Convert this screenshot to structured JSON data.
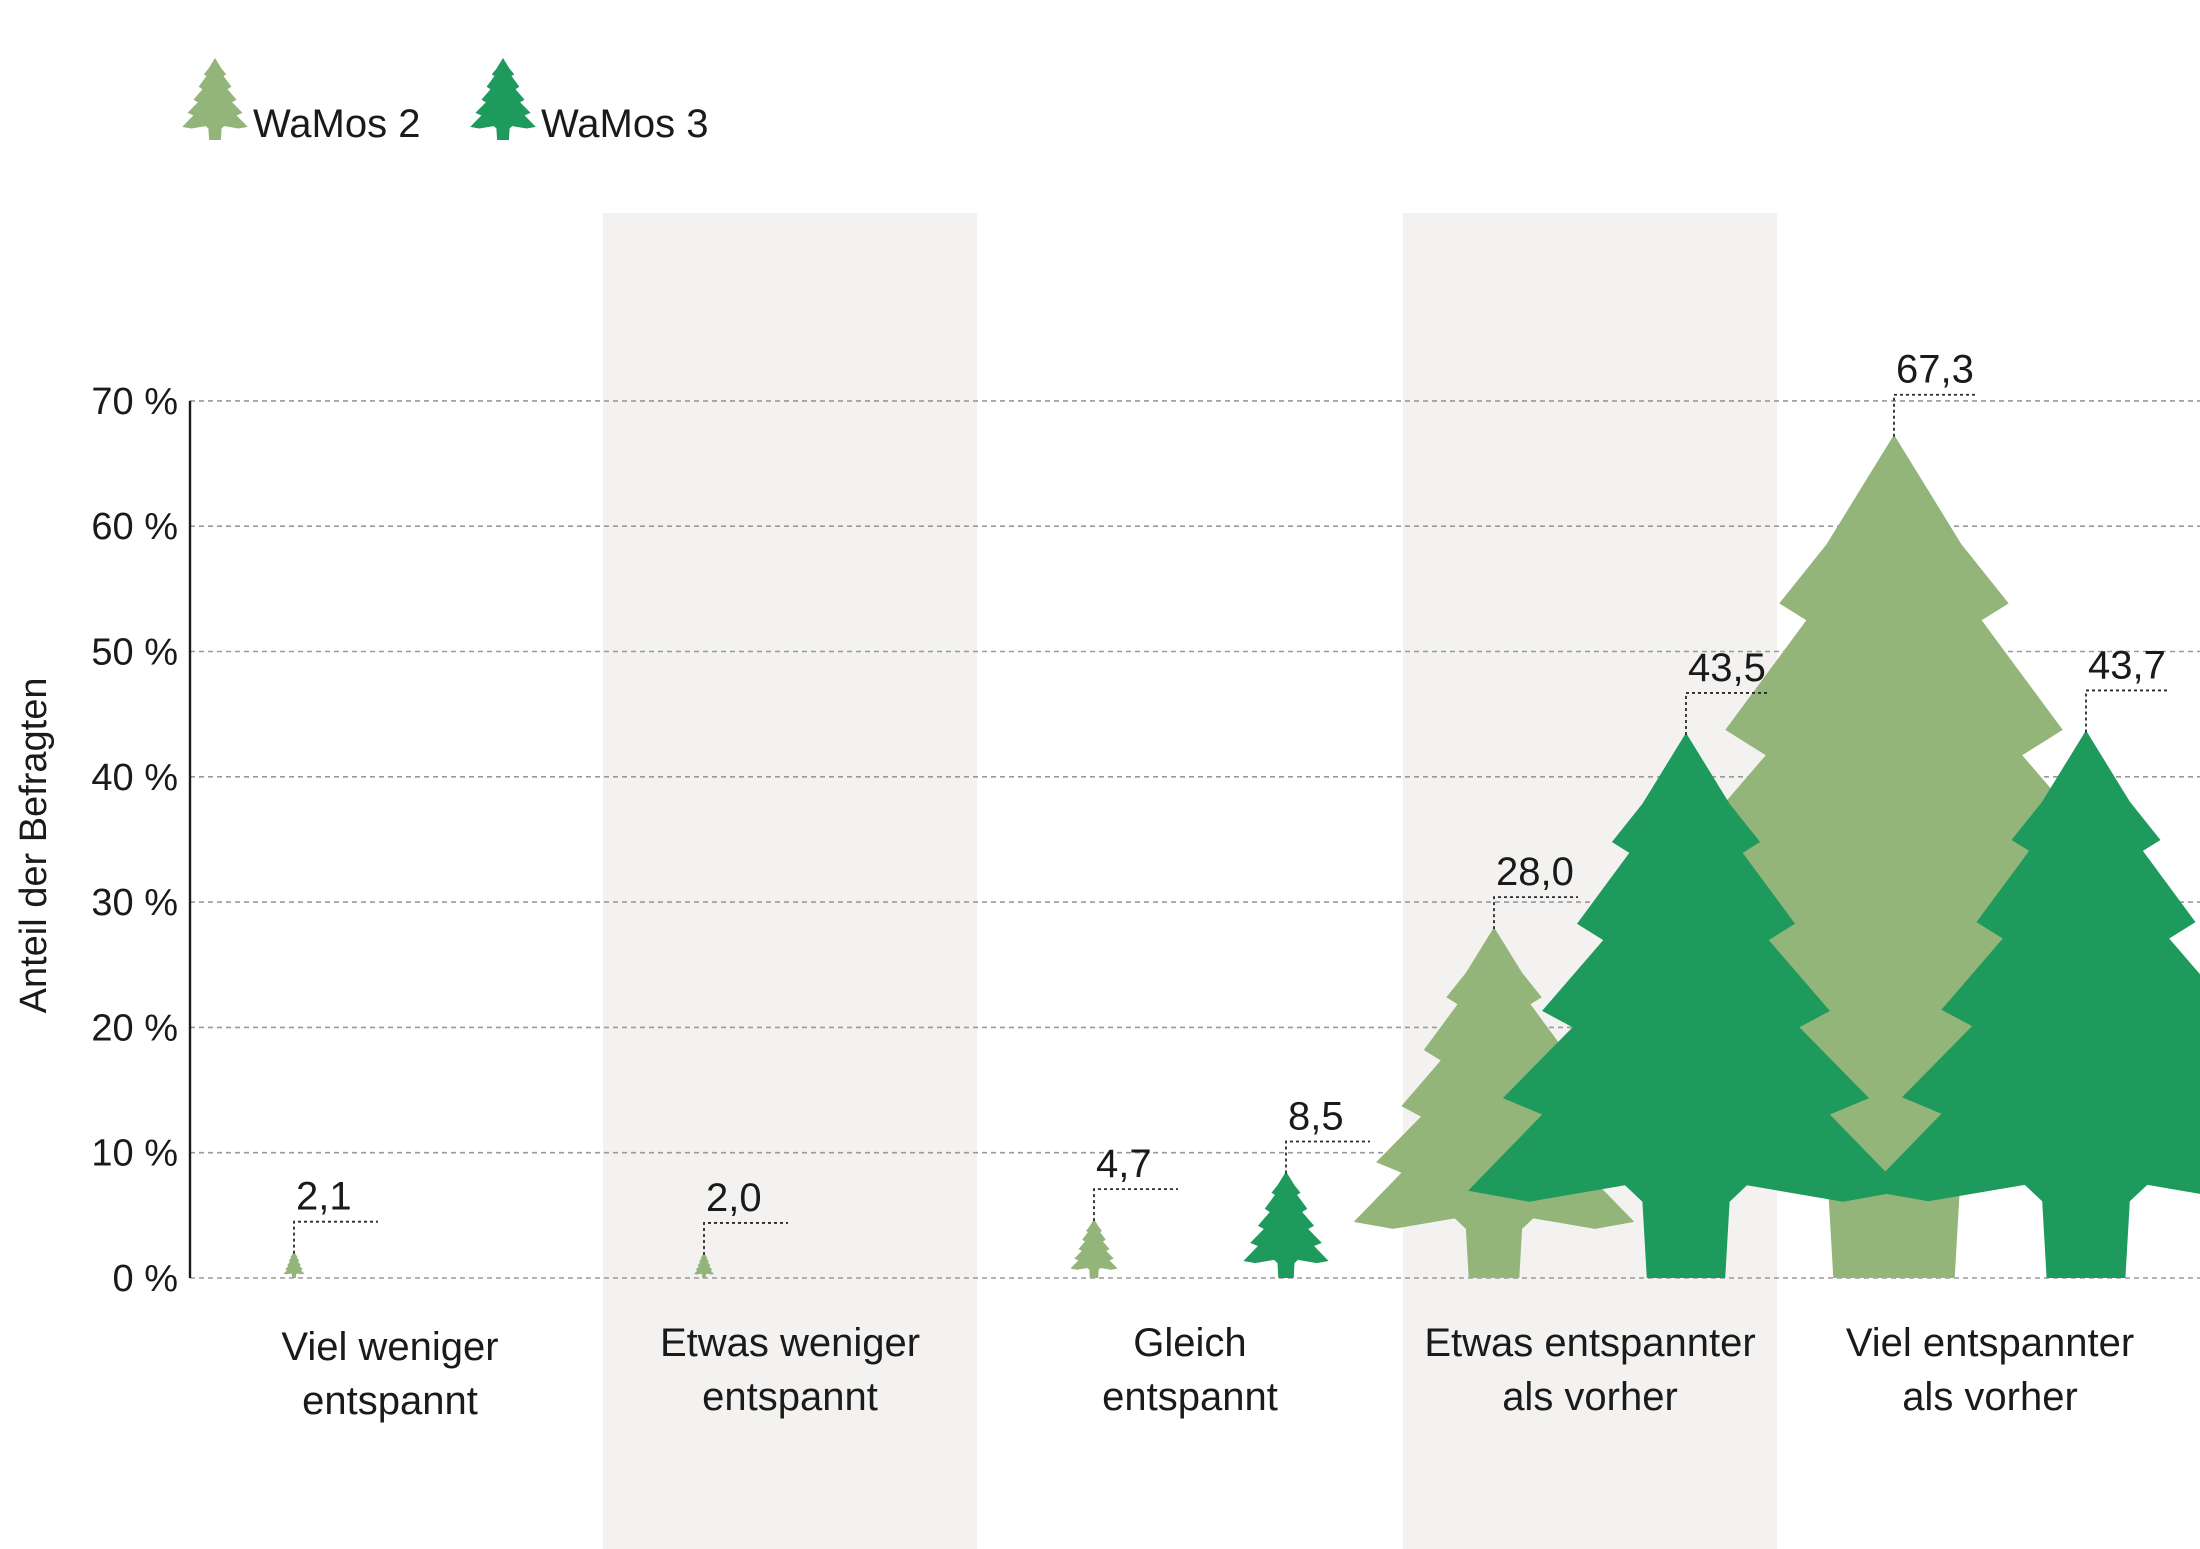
{
  "chart_data": {
    "type": "bar",
    "title": "",
    "xlabel": "",
    "ylabel": "Anteil der Befragten",
    "ylim": [
      0,
      70
    ],
    "y_ticks": [
      {
        "value": 0,
        "label": "0 %"
      },
      {
        "value": 10,
        "label": "10 %"
      },
      {
        "value": 20,
        "label": "20 %"
      },
      {
        "value": 30,
        "label": "30 %"
      },
      {
        "value": 40,
        "label": "40 %"
      },
      {
        "value": 50,
        "label": "50 %"
      },
      {
        "value": 60,
        "label": "60 %"
      },
      {
        "value": 70,
        "label": "70 %"
      }
    ],
    "grid": true,
    "legend_position": "top-left",
    "categories": [
      [
        "Viel weniger",
        "entspannt"
      ],
      [
        "Etwas weniger",
        "entspannt"
      ],
      [
        "Gleich",
        "entspannt"
      ],
      [
        "Etwas entspannter",
        "als vorher"
      ],
      [
        "Viel entspannter",
        "als vorher"
      ]
    ],
    "series": [
      {
        "name": "WaMos 2",
        "color": "#93b57a",
        "values": [
          2.1,
          2.0,
          4.7,
          28.0,
          67.3
        ],
        "labels": [
          "2,1",
          "2,0",
          "4,7",
          "28,0",
          "67,3"
        ]
      },
      {
        "name": "WaMos 3",
        "color": "#1d9a5c",
        "values": [
          null,
          null,
          8.5,
          43.5,
          43.7
        ],
        "labels": [
          "",
          "",
          "8,5",
          "43,5",
          "43,7"
        ]
      }
    ],
    "mark_shape": "tree-icon",
    "band_color": "#f3f2f0"
  }
}
